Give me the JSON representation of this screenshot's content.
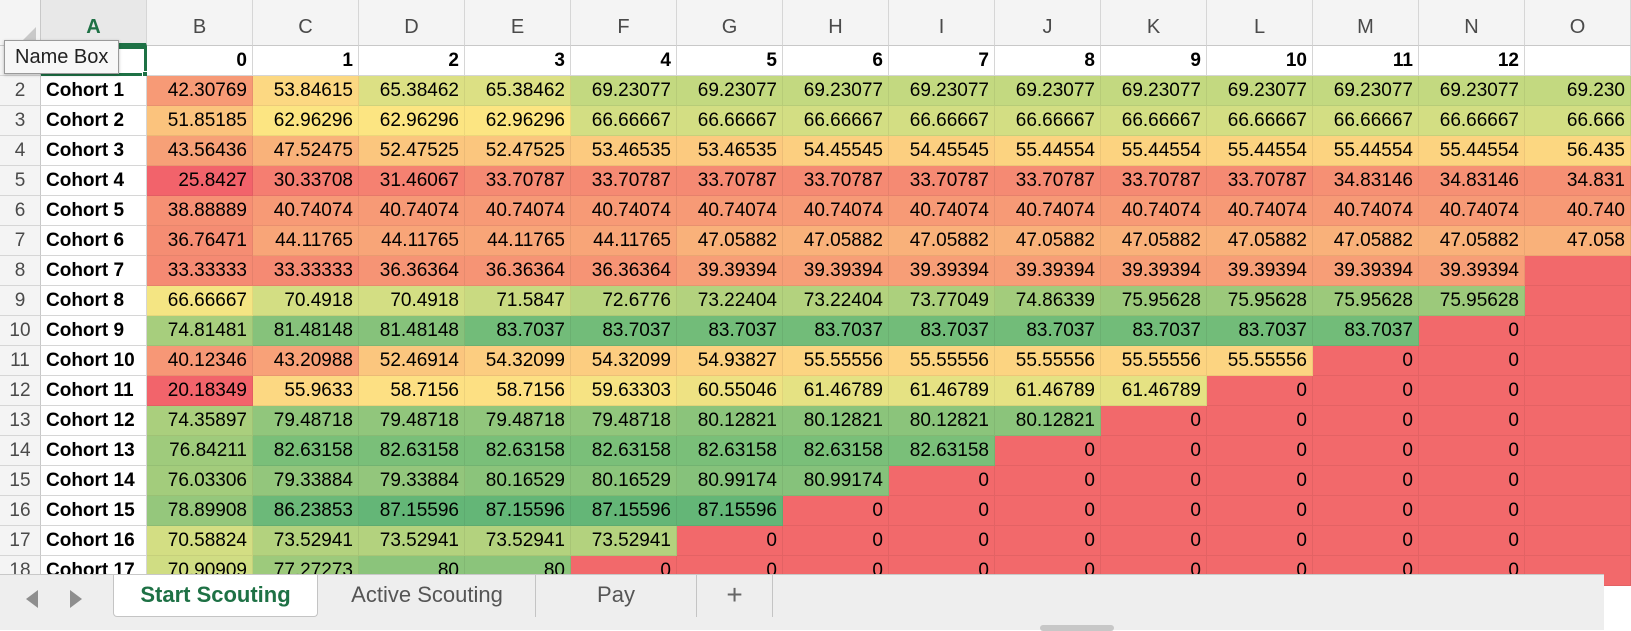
{
  "namebox_tooltip": "Name Box",
  "columns": [
    "A",
    "B",
    "C",
    "D",
    "E",
    "F",
    "G",
    "H",
    "I",
    "J",
    "K",
    "L",
    "M",
    "N",
    "O"
  ],
  "active_column": "A",
  "header_row": {
    "row": "1",
    "values": [
      "",
      "0",
      "1",
      "2",
      "3",
      "4",
      "5",
      "6",
      "7",
      "8",
      "9",
      "10",
      "11",
      "12",
      ""
    ]
  },
  "rows": [
    {
      "row": "2",
      "label": "Cohort 1",
      "values": [
        "42.30769",
        "53.84615",
        "65.38462",
        "65.38462",
        "69.23077",
        "69.23077",
        "69.23077",
        "69.23077",
        "69.23077",
        "69.23077",
        "69.23077",
        "69.23077",
        "69.23077",
        "69.230"
      ],
      "colors": [
        "#f79a76",
        "#fcd882",
        "#dce084",
        "#dce084",
        "#c3d980",
        "#c3d980",
        "#c3d980",
        "#c3d980",
        "#c3d980",
        "#c3d980",
        "#c3d980",
        "#c3d980",
        "#c3d980",
        "#c3d980"
      ]
    },
    {
      "row": "3",
      "label": "Cohort 2",
      "values": [
        "51.85185",
        "62.96296",
        "62.96296",
        "62.96296",
        "66.66667",
        "66.66667",
        "66.66667",
        "66.66667",
        "66.66667",
        "66.66667",
        "66.66667",
        "66.66667",
        "66.66667",
        "66.666"
      ],
      "colors": [
        "#fbc37d",
        "#fce582",
        "#fce582",
        "#fce582",
        "#d3de83",
        "#d3de83",
        "#d3de83",
        "#d3de83",
        "#d3de83",
        "#d3de83",
        "#d3de83",
        "#d3de83",
        "#d3de83",
        "#d3de83"
      ]
    },
    {
      "row": "4",
      "label": "Cohort 3",
      "values": [
        "43.56436",
        "47.52475",
        "52.47525",
        "52.47525",
        "53.46535",
        "53.46535",
        "54.45545",
        "54.45545",
        "55.44554",
        "55.44554",
        "55.44554",
        "55.44554",
        "55.44554",
        "56.435"
      ],
      "colors": [
        "#f7a077",
        "#f9b27a",
        "#fbc67e",
        "#fbc67e",
        "#fcca7f",
        "#fcca7f",
        "#fccf80",
        "#fccf80",
        "#fcd380",
        "#fcd380",
        "#fcd380",
        "#fcd380",
        "#fcd380",
        "#fcd781"
      ]
    },
    {
      "row": "5",
      "label": "Cohort 4",
      "values": [
        "25.8427",
        "30.33708",
        "31.46067",
        "33.70787",
        "33.70787",
        "33.70787",
        "33.70787",
        "33.70787",
        "33.70787",
        "33.70787",
        "33.70787",
        "34.83146",
        "34.83146",
        "34.831"
      ],
      "colors": [
        "#f2636b",
        "#f57e71",
        "#f58171",
        "#f58a73",
        "#f58a73",
        "#f58a73",
        "#f58a73",
        "#f58a73",
        "#f58a73",
        "#f58a73",
        "#f58a73",
        "#f69074",
        "#f69074",
        "#f69074"
      ]
    },
    {
      "row": "6",
      "label": "Cohort 5",
      "values": [
        "38.88889",
        "40.74074",
        "40.74074",
        "40.74074",
        "40.74074",
        "40.74074",
        "40.74074",
        "40.74074",
        "40.74074",
        "40.74074",
        "40.74074",
        "40.74074",
        "40.74074",
        "40.740"
      ],
      "colors": [
        "#f69074",
        "#f79a76",
        "#f79a76",
        "#f79a76",
        "#f79a76",
        "#f79a76",
        "#f79a76",
        "#f79a76",
        "#f79a76",
        "#f79a76",
        "#f79a76",
        "#f79a76",
        "#f79a76",
        "#f79a76"
      ]
    },
    {
      "row": "7",
      "label": "Cohort 6",
      "values": [
        "36.76471",
        "44.11765",
        "44.11765",
        "44.11765",
        "44.11765",
        "47.05882",
        "47.05882",
        "47.05882",
        "47.05882",
        "47.05882",
        "47.05882",
        "47.05882",
        "47.05882",
        "47.058"
      ],
      "colors": [
        "#f58d73",
        "#f8a578",
        "#f8a578",
        "#f8a578",
        "#f8a578",
        "#f9b17a",
        "#f9b17a",
        "#f9b17a",
        "#f9b17a",
        "#f9b17a",
        "#f9b17a",
        "#f9b17a",
        "#f9b17a",
        "#f9b17a"
      ]
    },
    {
      "row": "8",
      "label": "Cohort 7",
      "values": [
        "33.33333",
        "33.33333",
        "36.36364",
        "36.36364",
        "36.36364",
        "39.39394",
        "39.39394",
        "39.39394",
        "39.39394",
        "39.39394",
        "39.39394",
        "39.39394",
        "39.39394",
        ""
      ],
      "colors": [
        "#f58a73",
        "#f58a73",
        "#f69475",
        "#f69475",
        "#f69475",
        "#f79e77",
        "#f79e77",
        "#f79e77",
        "#f79e77",
        "#f79e77",
        "#f79e77",
        "#f79e77",
        "#f79e77",
        "#f2696b"
      ]
    },
    {
      "row": "9",
      "label": "Cohort 8",
      "values": [
        "66.66667",
        "70.4918",
        "70.4918",
        "71.5847",
        "72.6776",
        "73.22404",
        "73.22404",
        "73.77049",
        "74.86339",
        "75.95628",
        "75.95628",
        "75.95628",
        "75.95628",
        ""
      ],
      "colors": [
        "#f4e583",
        "#d3de83",
        "#d3de83",
        "#c9da81",
        "#b8d47e",
        "#b3d27e",
        "#b3d27e",
        "#acd07d",
        "#a3cc7c",
        "#9cc97b",
        "#9cc97b",
        "#9cc97b",
        "#9cc97b",
        "#f2696b"
      ]
    },
    {
      "row": "10",
      "label": "Cohort 9",
      "values": [
        "74.81481",
        "81.48148",
        "81.48148",
        "83.7037",
        "83.7037",
        "83.7037",
        "83.7037",
        "83.7037",
        "83.7037",
        "83.7037",
        "83.7037",
        "83.7037",
        "0",
        ""
      ],
      "colors": [
        "#a7ce7d",
        "#86c27b",
        "#86c27b",
        "#72bc79",
        "#72bc79",
        "#72bc79",
        "#72bc79",
        "#72bc79",
        "#72bc79",
        "#72bc79",
        "#72bc79",
        "#72bc79",
        "#f2696b",
        "#f2696b"
      ]
    },
    {
      "row": "11",
      "label": "Cohort 10",
      "values": [
        "40.12346",
        "43.20988",
        "52.46914",
        "54.32099",
        "54.32099",
        "54.93827",
        "55.55556",
        "55.55556",
        "55.55556",
        "55.55556",
        "55.55556",
        "0",
        "0",
        ""
      ],
      "colors": [
        "#f79776",
        "#f8a178",
        "#fbc67e",
        "#fccd80",
        "#fccd80",
        "#fcd180",
        "#fcd481",
        "#fcd481",
        "#fcd481",
        "#fcd481",
        "#fcd481",
        "#f2696b",
        "#f2696b",
        "#f2696b"
      ]
    },
    {
      "row": "12",
      "label": "Cohort 11",
      "values": [
        "20.18349",
        "55.9633",
        "58.7156",
        "58.7156",
        "59.63303",
        "60.55046",
        "61.46789",
        "61.46789",
        "61.46789",
        "61.46789",
        "0",
        "0",
        "0",
        ""
      ],
      "colors": [
        "#f2646b",
        "#fcd882",
        "#fde083",
        "#fde083",
        "#f6e383",
        "#eee283",
        "#e5e283",
        "#e5e283",
        "#e5e283",
        "#e5e283",
        "#f2696b",
        "#f2696b",
        "#f2696b",
        "#f2696b"
      ]
    },
    {
      "row": "13",
      "label": "Cohort 12",
      "values": [
        "74.35897",
        "79.48718",
        "79.48718",
        "79.48718",
        "79.48718",
        "80.12821",
        "80.12821",
        "80.12821",
        "80.12821",
        "0",
        "0",
        "0",
        "0",
        ""
      ],
      "colors": [
        "#aacf7d",
        "#91c67c",
        "#91c67c",
        "#91c67c",
        "#91c67c",
        "#8bc47b",
        "#8bc47b",
        "#8bc47b",
        "#8bc47b",
        "#f2696b",
        "#f2696b",
        "#f2696b",
        "#f2696b",
        "#f2696b"
      ]
    },
    {
      "row": "14",
      "label": "Cohort 13",
      "values": [
        "76.84211",
        "82.63158",
        "82.63158",
        "82.63158",
        "82.63158",
        "82.63158",
        "82.63158",
        "82.63158",
        "0",
        "0",
        "0",
        "0",
        "0",
        ""
      ],
      "colors": [
        "#9fcb7c",
        "#7abf79",
        "#7abf79",
        "#7abf79",
        "#7abf79",
        "#7abf79",
        "#7abf79",
        "#7abf79",
        "#f2696b",
        "#f2696b",
        "#f2696b",
        "#f2696b",
        "#f2696b",
        "#f2696b"
      ]
    },
    {
      "row": "15",
      "label": "Cohort 14",
      "values": [
        "76.03306",
        "79.33884",
        "79.33884",
        "80.16529",
        "80.16529",
        "80.99174",
        "80.99174",
        "0",
        "0",
        "0",
        "0",
        "0",
        "0",
        ""
      ],
      "colors": [
        "#a3cc7c",
        "#93c67c",
        "#93c67c",
        "#8bc47b",
        "#8bc47b",
        "#86c27b",
        "#86c27b",
        "#f2696b",
        "#f2696b",
        "#f2696b",
        "#f2696b",
        "#f2696b",
        "#f2696b",
        "#f2696b"
      ]
    },
    {
      "row": "16",
      "label": "Cohort 15",
      "values": [
        "78.89908",
        "86.23853",
        "87.15596",
        "87.15596",
        "87.15596",
        "87.15596",
        "0",
        "0",
        "0",
        "0",
        "0",
        "0",
        "0",
        ""
      ],
      "colors": [
        "#95c77c",
        "#6cb979",
        "#64b677",
        "#64b677",
        "#64b677",
        "#64b677",
        "#f2696b",
        "#f2696b",
        "#f2696b",
        "#f2696b",
        "#f2696b",
        "#f2696b",
        "#f2696b",
        "#f2696b"
      ]
    },
    {
      "row": "17",
      "label": "Cohort 16",
      "values": [
        "70.58824",
        "73.52941",
        "73.52941",
        "73.52941",
        "73.52941",
        "0",
        "0",
        "0",
        "0",
        "0",
        "0",
        "0",
        "0",
        ""
      ],
      "colors": [
        "#d3de83",
        "#b3d27e",
        "#b3d27e",
        "#b3d27e",
        "#b3d27e",
        "#f2696b",
        "#f2696b",
        "#f2696b",
        "#f2696b",
        "#f2696b",
        "#f2696b",
        "#f2696b",
        "#f2696b",
        "#f2696b"
      ]
    },
    {
      "row": "18",
      "label": "Cohort 17",
      "values": [
        "70.90909",
        "77.27273",
        "80",
        "80",
        "0",
        "0",
        "0",
        "0",
        "0",
        "0",
        "0",
        "0",
        "0",
        ""
      ],
      "colors": [
        "#d0dd83",
        "#9dca7c",
        "#8bc47b",
        "#8bc47b",
        "#f2696b",
        "#f2696b",
        "#f2696b",
        "#f2696b",
        "#f2696b",
        "#f2696b",
        "#f2696b",
        "#f2696b",
        "#f2696b",
        "#f2696b"
      ]
    }
  ],
  "tabs": [
    {
      "label": "Start Scouting",
      "active": true
    },
    {
      "label": "Active Scouting",
      "active": false
    },
    {
      "label": "Pay",
      "active": false
    }
  ],
  "add_tab_label": "+",
  "accent_color": "#1e7145"
}
